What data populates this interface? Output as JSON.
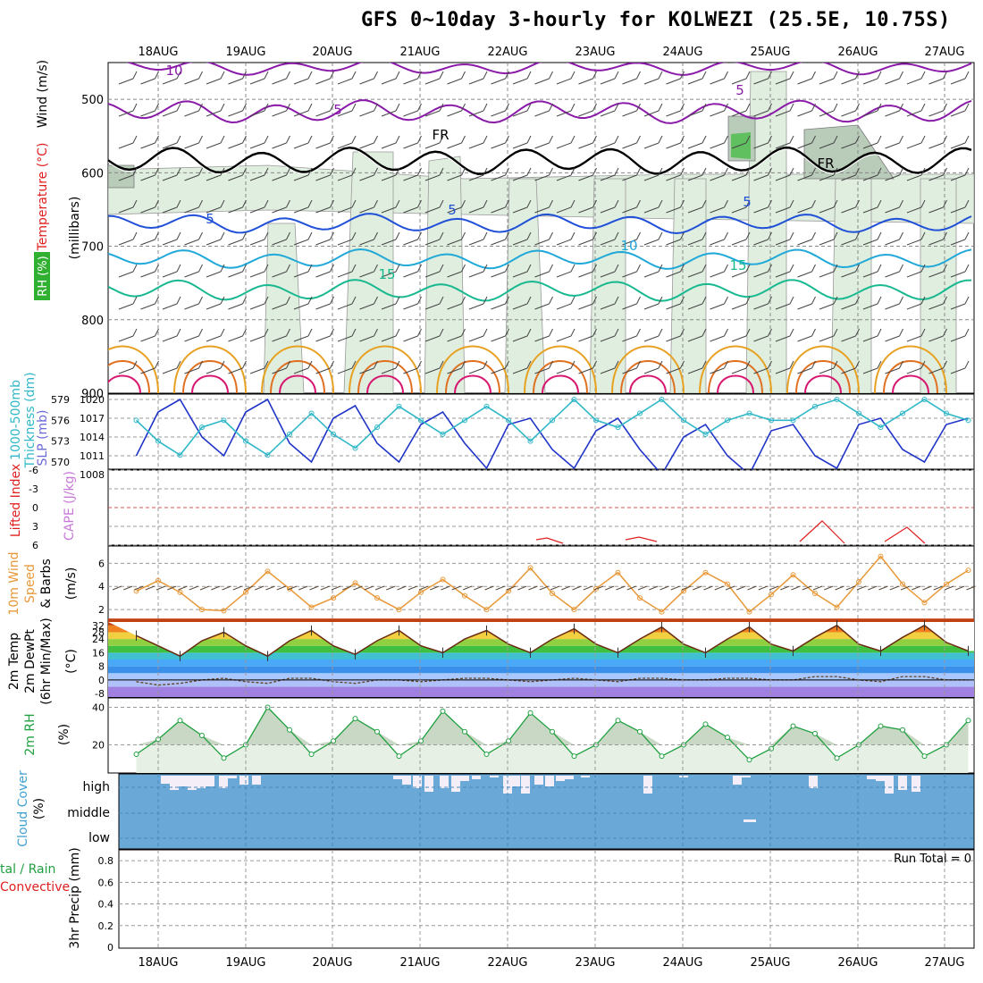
{
  "title": "GFS 0~10day 3-hourly for KOLWEZI (25.5E, 10.75S)",
  "dates": [
    "18AUG",
    "19AUG",
    "20AUG",
    "21AUG",
    "22AUG",
    "23AUG",
    "24AUG",
    "25AUG",
    "26AUG",
    "27AUG"
  ],
  "colors": {
    "purple": "#8a1aa8",
    "blue": "#2050d8",
    "cyan": "#20a8d8",
    "teal": "#18b890",
    "green_rh": "#cfe8d0",
    "slp": "#2035c8",
    "thick": "#30b8c8",
    "wind": "#e89838",
    "rain_red": "#e02020",
    "cloud": "#6aa8d8"
  },
  "panels": {
    "upper": {
      "label_rh": "RH (%)",
      "label_temp": "Temperature (°C)",
      "label_wind": "Wind (m/s)",
      "label_mb": "(millibars)",
      "yticks": [
        "500",
        "600",
        "700",
        "800",
        "900"
      ],
      "contour_labels": [
        "10",
        "5",
        "FR",
        "5",
        "5",
        "5",
        "10",
        "15",
        "15",
        "FR",
        "5"
      ]
    },
    "slp": {
      "label_left1": "1000-500mb",
      "label_left2": "Thickness (dm)",
      "label_right": "SLP (mb)",
      "left_ticks": [
        "579",
        "576",
        "573",
        "570"
      ],
      "right_ticks": [
        "1020",
        "1017",
        "1014",
        "1011",
        "1008"
      ]
    },
    "li": {
      "label1": "Lifted Index",
      "label2": "CAPE (J/kg)",
      "ticks": [
        "-6",
        "-3",
        "0",
        "3",
        "6"
      ]
    },
    "wind10": {
      "label1": "10m Wind",
      "label2": "Speed",
      "label3": "& Barbs",
      "unit": "(m/s)",
      "ticks": [
        "6",
        "4",
        "2"
      ]
    },
    "temp2m": {
      "label1": "2m Temp",
      "label2": "2m DewPt",
      "label3": "(6hr Min/Max)",
      "unit": "(°C)",
      "ticks": [
        "32",
        "28",
        "24",
        "16",
        "8",
        "0",
        "-8"
      ]
    },
    "rh2m": {
      "label": "2m RH",
      "unit": "(%)",
      "ticks": [
        "40",
        "20"
      ]
    },
    "cloud": {
      "label": "Cloud Cover",
      "unit": "(%)",
      "levels": [
        "high",
        "middle",
        "low"
      ]
    },
    "precip": {
      "label1": "tal / Rain",
      "label2": "Convective",
      "label3": "3hr Precip (mm)",
      "ticks": [
        "0.8",
        "0.6",
        "0.4",
        "0.2",
        "0"
      ],
      "run_total": "Run Total = 0"
    }
  },
  "chart_data": [
    {
      "type": "line",
      "title": "SLP (mb)",
      "x": [
        "17AUG 18",
        "18AUG 00",
        "18AUG 06",
        "18AUG 12",
        "18AUG 18",
        "19AUG 00",
        "19AUG 06",
        "19AUG 12",
        "19AUG 18",
        "20AUG 00",
        "20AUG 06",
        "20AUG 12",
        "20AUG 18",
        "21AUG 00",
        "21AUG 06",
        "21AUG 12",
        "21AUG 18",
        "22AUG 00",
        "22AUG 06",
        "22AUG 12",
        "22AUG 18",
        "23AUG 00",
        "23AUG 06",
        "23AUG 12",
        "23AUG 18",
        "24AUG 00",
        "24AUG 06",
        "24AUG 12",
        "24AUG 18",
        "25AUG 00",
        "25AUG 06",
        "25AUG 12",
        "25AUG 18",
        "26AUG 00",
        "26AUG 06",
        "26AUG 12",
        "26AUG 18",
        "27AUG 00",
        "27AUG 06"
      ],
      "series": [
        {
          "name": "SLP (mb)",
          "values": [
            1011,
            1018,
            1020,
            1014,
            1011,
            1018,
            1020,
            1013,
            1010,
            1017,
            1019,
            1013,
            1010,
            1016,
            1018,
            1013,
            1009,
            1016,
            1017,
            1012,
            1009,
            1015,
            1017,
            1012,
            1008,
            1014,
            1016,
            1011,
            1008,
            1015,
            1016,
            1011,
            1009,
            1016,
            1017,
            1012,
            1010,
            1016,
            1017
          ]
        },
        {
          "name": "1000-500mb Thickness (dm)",
          "values": [
            576,
            573,
            571,
            575,
            576,
            573,
            571,
            574,
            577,
            574,
            572,
            575,
            578,
            576,
            574,
            576,
            578,
            576,
            573,
            576,
            579,
            576,
            575,
            577,
            579,
            576,
            574,
            576,
            577,
            576,
            576,
            578,
            579,
            577,
            575,
            577,
            579,
            577,
            576
          ]
        }
      ]
    },
    {
      "type": "line",
      "title": "10m Wind Speed (m/s)",
      "series": [
        {
          "name": "10m Wind Speed",
          "values": [
            3.6,
            4.5,
            3.5,
            2.0,
            1.9,
            3.5,
            5.3,
            3.8,
            2.2,
            3.0,
            4.3,
            3.0,
            2.0,
            3.5,
            4.6,
            3.2,
            2.0,
            3.6,
            5.6,
            3.4,
            2.0,
            3.8,
            5.2,
            3.0,
            1.8,
            3.6,
            5.2,
            4.2,
            1.8,
            3.3,
            5.0,
            3.4,
            2.2,
            4.4,
            6.6,
            4.2,
            2.6,
            4.2,
            5.4
          ]
        }
      ]
    },
    {
      "type": "line",
      "title": "2m RH (%)",
      "series": [
        {
          "name": "2m RH",
          "values": [
            15,
            23,
            33,
            25,
            13,
            20,
            40,
            28,
            15,
            22,
            34,
            27,
            14,
            22,
            38,
            27,
            15,
            22,
            37,
            27,
            14,
            20,
            33,
            27,
            14,
            20,
            31,
            24,
            12,
            18,
            30,
            26,
            13,
            20,
            30,
            28,
            14,
            20,
            33
          ]
        }
      ]
    },
    {
      "type": "area",
      "title": "2m Temp (°C)",
      "series": [
        {
          "name": "2m Temp",
          "values": [
            26,
            20,
            14,
            23,
            28,
            20,
            14,
            23,
            29,
            20,
            15,
            23,
            29,
            20,
            16,
            24,
            29,
            21,
            16,
            24,
            30,
            21,
            16,
            24,
            31,
            21,
            16,
            24,
            31,
            21,
            17,
            25,
            32,
            21,
            17,
            25,
            32,
            22,
            17
          ]
        },
        {
          "name": "2m DewPt",
          "values": [
            -1,
            -3,
            -2,
            0,
            1,
            -1,
            -2,
            1,
            1,
            -1,
            -2,
            0,
            0,
            -1,
            0,
            1,
            1,
            0,
            -1,
            0,
            1,
            0,
            -1,
            1,
            1,
            0,
            0,
            1,
            1,
            0,
            0,
            2,
            2,
            0,
            -1,
            2,
            2,
            0,
            0
          ]
        }
      ]
    },
    {
      "type": "bar",
      "title": "3hr Precip (mm)",
      "ylim": [
        0,
        0.9
      ],
      "values": [
        0
      ]
    }
  ]
}
